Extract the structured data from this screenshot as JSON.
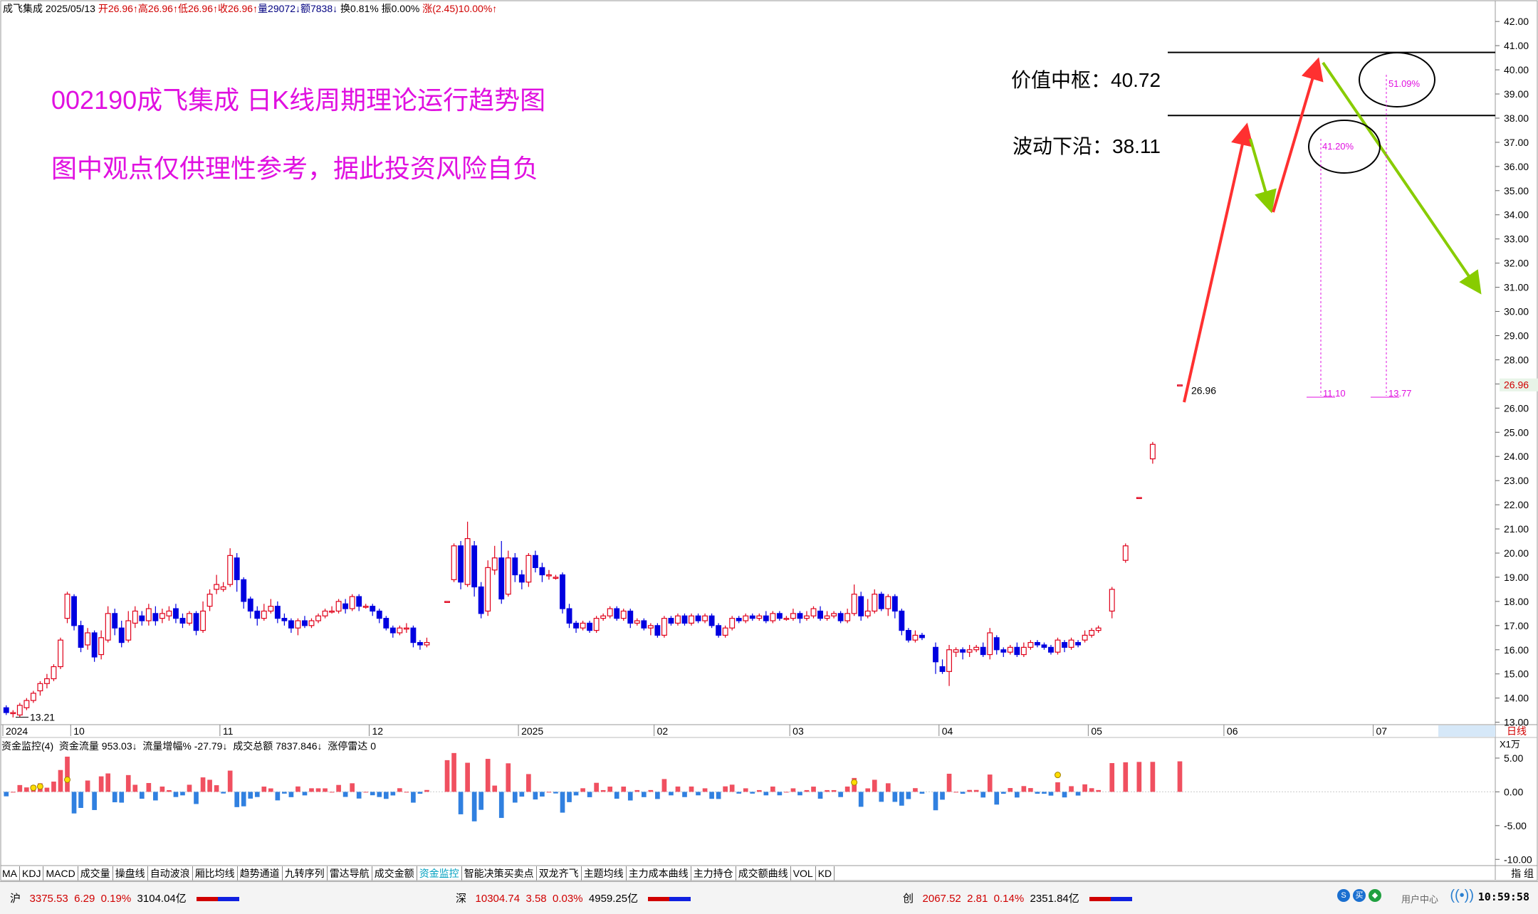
{
  "header": {
    "stock_name": "成飞集成",
    "date": "2025/05/13",
    "open": "开26.96↑",
    "high": "高26.96↑",
    "low": "低26.96↑",
    "close": "收26.96↑",
    "volume": "量29072↓",
    "amount": "额7838↓",
    "turnover": "换0.81%",
    "amplitude": "振0.00%",
    "change": "涨(2.45)10.00%↑"
  },
  "annotations": {
    "title": "002190成飞集成 日K线周期理论运行趋势图",
    "note": "图中观点仅供理性参考，据此投资风险自负",
    "value_center_label": "价值中枢：40.72",
    "wave_lower_label": "波动下沿：38.11",
    "value_center": 40.72,
    "wave_lower": 38.11,
    "current_price_label": "26.96",
    "low_label": "13.21",
    "pct_1": "41.20%",
    "pct_2": "51.09%",
    "bottom_1": "11.10",
    "bottom_2": "13.77",
    "right_price_tag": "26.96",
    "period": "日线"
  },
  "chart_data": {
    "type": "candlestick",
    "y_axis_ticks": [
      "13.00",
      "14.00",
      "15.00",
      "16.00",
      "17.00",
      "18.00",
      "19.00",
      "20.00",
      "21.00",
      "22.00",
      "23.00",
      "24.00",
      "25.00",
      "26.00",
      "27.00",
      "28.00",
      "29.00",
      "30.00",
      "31.00",
      "32.00",
      "33.00",
      "34.00",
      "35.00",
      "36.00",
      "37.00",
      "38.00",
      "39.00",
      "40.00",
      "41.00",
      "42.00"
    ],
    "ylim": [
      12.9,
      42.3
    ],
    "x_axis_labels": [
      "2024",
      "10",
      "11",
      "12",
      "2025",
      "02",
      "03",
      "04",
      "05",
      "06",
      "07"
    ],
    "x_label_days": [
      0,
      10,
      32,
      54,
      76,
      96,
      116,
      138,
      160,
      180,
      202
    ],
    "total_days": 220,
    "candles": [
      [
        13.6,
        13.4,
        13.7,
        13.3
      ],
      [
        13.4,
        13.4,
        13.5,
        13.2
      ],
      [
        13.3,
        13.7,
        13.8,
        13.2
      ],
      [
        13.6,
        13.9,
        14.0,
        13.5
      ],
      [
        13.9,
        14.2,
        14.3,
        13.8
      ],
      [
        14.3,
        14.6,
        14.7,
        14.1
      ],
      [
        14.6,
        14.8,
        15.0,
        14.4
      ],
      [
        14.8,
        15.3,
        15.4,
        14.7
      ],
      [
        15.3,
        16.4,
        16.5,
        15.2
      ],
      [
        17.3,
        18.3,
        18.4,
        17.1
      ],
      [
        18.2,
        17.0,
        18.3,
        16.8
      ],
      [
        17.0,
        16.1,
        17.2,
        15.9
      ],
      [
        16.2,
        16.7,
        16.9,
        16.0
      ],
      [
        16.7,
        15.7,
        16.8,
        15.5
      ],
      [
        15.8,
        16.5,
        16.8,
        15.6
      ],
      [
        16.4,
        17.5,
        17.8,
        16.3
      ],
      [
        17.5,
        16.9,
        17.7,
        16.6
      ],
      [
        16.9,
        16.3,
        17.2,
        16.1
      ],
      [
        16.4,
        17.2,
        17.6,
        16.3
      ],
      [
        17.1,
        17.6,
        17.8,
        16.9
      ],
      [
        17.4,
        17.2,
        17.6,
        17.0
      ],
      [
        17.2,
        17.7,
        17.9,
        17.0
      ],
      [
        17.5,
        17.2,
        17.8,
        17.0
      ],
      [
        17.3,
        17.5,
        17.7,
        17.1
      ],
      [
        17.4,
        17.6,
        17.8,
        17.2
      ],
      [
        17.7,
        17.3,
        17.9,
        17.1
      ],
      [
        17.3,
        17.1,
        17.5,
        16.9
      ],
      [
        17.1,
        17.5,
        17.6,
        17.0
      ],
      [
        17.5,
        16.8,
        17.6,
        16.6
      ],
      [
        16.8,
        17.6,
        18.0,
        16.7
      ],
      [
        17.8,
        18.3,
        18.5,
        17.6
      ],
      [
        18.5,
        18.7,
        19.1,
        18.3
      ],
      [
        18.5,
        18.6,
        18.8,
        18.4
      ],
      [
        18.7,
        19.9,
        20.2,
        18.6
      ],
      [
        19.8,
        18.9,
        20.0,
        18.4
      ],
      [
        18.9,
        18.0,
        19.0,
        17.7
      ],
      [
        18.1,
        17.6,
        18.2,
        17.3
      ],
      [
        17.6,
        17.3,
        17.8,
        17.0
      ],
      [
        17.3,
        17.6,
        17.9,
        17.2
      ],
      [
        17.6,
        17.8,
        18.1,
        17.5
      ],
      [
        17.8,
        17.3,
        18.0,
        17.1
      ],
      [
        17.3,
        17.2,
        17.5,
        17.0
      ],
      [
        17.2,
        16.9,
        17.3,
        16.7
      ],
      [
        16.9,
        17.2,
        17.3,
        16.6
      ],
      [
        17.2,
        17.0,
        17.4,
        16.9
      ],
      [
        17.0,
        17.2,
        17.3,
        16.9
      ],
      [
        17.2,
        17.4,
        17.5,
        17.1
      ],
      [
        17.4,
        17.6,
        17.7,
        17.3
      ],
      [
        17.6,
        17.6,
        17.8,
        17.5
      ],
      [
        17.6,
        18.0,
        18.1,
        17.5
      ],
      [
        17.9,
        17.7,
        18.1,
        17.5
      ],
      [
        17.7,
        18.2,
        18.3,
        17.6
      ],
      [
        18.2,
        17.8,
        18.3,
        17.6
      ],
      [
        17.8,
        17.8,
        17.9,
        17.7
      ],
      [
        17.8,
        17.6,
        17.9,
        17.4
      ],
      [
        17.6,
        17.3,
        17.7,
        17.1
      ],
      [
        17.3,
        16.9,
        17.4,
        16.8
      ],
      [
        16.9,
        16.7,
        17.0,
        16.5
      ],
      [
        16.7,
        16.9,
        17.0,
        16.6
      ],
      [
        16.9,
        16.9,
        17.1,
        16.7
      ],
      [
        16.9,
        16.3,
        17.0,
        16.1
      ],
      [
        16.3,
        16.2,
        16.4,
        16.0
      ],
      [
        16.2,
        16.3,
        16.5,
        16.1
      ],
      null,
      null,
      [
        18.0,
        18.0,
        18.0,
        18.0
      ],
      [
        18.9,
        20.3,
        20.4,
        18.8
      ],
      [
        20.3,
        18.8,
        20.5,
        18.5
      ],
      [
        18.7,
        20.6,
        21.3,
        18.6
      ],
      [
        20.3,
        18.6,
        20.5,
        18.2
      ],
      [
        18.6,
        17.5,
        18.8,
        17.3
      ],
      [
        17.6,
        19.4,
        19.7,
        17.4
      ],
      [
        19.3,
        19.8,
        20.3,
        19.1
      ],
      [
        19.8,
        18.1,
        20.5,
        17.9
      ],
      [
        18.3,
        19.8,
        20.1,
        18.2
      ],
      [
        19.8,
        19.1,
        20.0,
        18.8
      ],
      [
        19.1,
        18.8,
        19.3,
        18.5
      ],
      [
        18.8,
        19.9,
        20.0,
        18.6
      ],
      [
        19.9,
        19.4,
        20.1,
        19.2
      ],
      [
        19.4,
        19.1,
        19.6,
        18.8
      ],
      [
        19.1,
        19.1,
        19.3,
        18.9
      ],
      [
        19.0,
        19.0,
        19.1,
        18.9
      ],
      [
        19.1,
        17.7,
        19.2,
        17.5
      ],
      [
        17.7,
        17.1,
        17.9,
        16.9
      ],
      [
        17.1,
        16.9,
        17.2,
        16.7
      ],
      [
        16.9,
        17.1,
        17.2,
        16.8
      ],
      [
        17.1,
        16.8,
        17.2,
        16.7
      ],
      [
        16.8,
        17.3,
        17.4,
        16.7
      ],
      [
        17.3,
        17.4,
        17.5,
        17.2
      ],
      [
        17.4,
        17.7,
        17.8,
        17.3
      ],
      [
        17.7,
        17.3,
        17.8,
        17.2
      ],
      [
        17.3,
        17.6,
        17.7,
        17.2
      ],
      [
        17.6,
        17.1,
        17.7,
        16.9
      ],
      [
        17.1,
        17.2,
        17.3,
        17.0
      ],
      [
        17.2,
        16.9,
        17.3,
        16.8
      ],
      [
        16.9,
        17.0,
        17.1,
        16.6
      ],
      [
        17.0,
        16.6,
        17.1,
        16.5
      ],
      [
        16.6,
        17.3,
        17.4,
        16.5
      ],
      [
        17.3,
        17.1,
        17.4,
        17.0
      ],
      [
        17.1,
        17.4,
        17.5,
        17.0
      ],
      [
        17.4,
        17.1,
        17.5,
        17.0
      ],
      [
        17.1,
        17.4,
        17.5,
        17.0
      ],
      [
        17.4,
        17.2,
        17.5,
        17.1
      ],
      [
        17.2,
        17.4,
        17.5,
        17.1
      ],
      [
        17.4,
        17.0,
        17.5,
        16.9
      ],
      [
        17.0,
        16.6,
        17.1,
        16.5
      ],
      [
        16.6,
        16.9,
        17.0,
        16.5
      ],
      [
        16.9,
        17.3,
        17.4,
        16.8
      ],
      [
        17.3,
        17.2,
        17.4,
        17.1
      ],
      [
        17.2,
        17.4,
        17.5,
        17.1
      ],
      [
        17.4,
        17.3,
        17.5,
        17.2
      ],
      [
        17.3,
        17.4,
        17.5,
        17.2
      ],
      [
        17.4,
        17.2,
        17.6,
        17.1
      ],
      [
        17.2,
        17.5,
        17.6,
        17.1
      ],
      [
        17.5,
        17.3,
        17.6,
        17.2
      ],
      [
        17.3,
        17.3,
        17.4,
        17.2
      ],
      [
        17.3,
        17.5,
        17.7,
        17.2
      ],
      [
        17.5,
        17.3,
        17.6,
        17.1
      ],
      [
        17.3,
        17.4,
        17.6,
        17.2
      ],
      [
        17.4,
        17.7,
        17.8,
        17.3
      ],
      [
        17.6,
        17.3,
        17.8,
        17.2
      ],
      [
        17.3,
        17.4,
        17.6,
        17.2
      ],
      [
        17.4,
        17.5,
        17.6,
        17.3
      ],
      [
        17.5,
        17.2,
        17.6,
        17.1
      ],
      [
        17.2,
        17.5,
        17.7,
        17.1
      ],
      [
        17.5,
        18.3,
        18.7,
        17.4
      ],
      [
        18.2,
        17.4,
        18.4,
        17.2
      ],
      [
        17.4,
        17.6,
        18.1,
        17.3
      ],
      [
        17.6,
        18.3,
        18.5,
        17.5
      ],
      [
        18.3,
        17.7,
        18.4,
        17.6
      ],
      [
        17.7,
        18.2,
        18.3,
        17.4
      ],
      [
        18.2,
        17.6,
        18.3,
        17.3
      ],
      [
        17.6,
        16.8,
        17.7,
        16.6
      ],
      [
        16.8,
        16.4,
        16.9,
        16.3
      ],
      [
        16.4,
        16.6,
        16.8,
        16.3
      ],
      [
        16.6,
        16.5,
        16.7,
        16.4
      ],
      null,
      [
        16.1,
        15.5,
        16.3,
        15.0
      ],
      [
        15.3,
        15.1,
        15.6,
        15.0
      ],
      [
        15.1,
        16.0,
        16.2,
        14.5
      ],
      [
        15.9,
        16.0,
        16.1,
        15.7
      ],
      [
        16.0,
        15.9,
        16.1,
        15.6
      ],
      [
        15.9,
        16.0,
        16.2,
        15.7
      ],
      [
        16.0,
        16.1,
        16.2,
        15.9
      ],
      [
        16.1,
        15.8,
        16.3,
        15.7
      ],
      [
        15.8,
        16.7,
        16.9,
        15.6
      ],
      [
        16.5,
        16.0,
        16.6,
        15.8
      ],
      [
        16.0,
        15.9,
        16.1,
        15.7
      ],
      [
        15.9,
        16.1,
        16.2,
        15.8
      ],
      [
        16.1,
        15.8,
        16.3,
        15.7
      ],
      [
        15.8,
        16.1,
        16.3,
        15.7
      ],
      [
        16.1,
        16.3,
        16.4,
        16.0
      ],
      [
        16.3,
        16.2,
        16.4,
        16.1
      ],
      [
        16.2,
        16.1,
        16.3,
        16.0
      ],
      [
        16.1,
        15.9,
        16.2,
        15.8
      ],
      [
        15.9,
        16.4,
        16.5,
        15.8
      ],
      [
        16.3,
        16.1,
        16.4,
        15.9
      ],
      [
        16.1,
        16.4,
        16.5,
        16.0
      ],
      [
        16.3,
        16.2,
        16.4,
        16.1
      ],
      [
        16.4,
        16.6,
        16.8,
        16.3
      ],
      [
        16.6,
        16.8,
        16.9,
        16.5
      ],
      [
        16.8,
        16.9,
        17.0,
        16.7
      ],
      null,
      [
        17.6,
        18.5,
        18.6,
        17.3
      ],
      null,
      [
        19.7,
        20.3,
        20.4,
        19.6
      ],
      null,
      [
        22.3,
        22.3,
        22.3,
        22.3
      ],
      null,
      [
        23.9,
        24.5,
        24.6,
        23.7
      ],
      null,
      null,
      null,
      [
        26.96,
        26.96,
        26.96,
        26.96
      ]
    ],
    "indicator": {
      "name": "资金监控(4)",
      "fund_flow": "资金流量 953.03↓",
      "flow_increase": "流量增幅% -27.79↓",
      "total_amount": "成交总额 7837.846↓",
      "limit_up": "涨停雷达 0",
      "unit": "X1万",
      "ticks": [
        "5.00",
        "0.00",
        "-5.00",
        "-10.00"
      ],
      "ylim": [
        -10.5,
        7.0
      ]
    }
  },
  "tabs": [
    "MA",
    "KDJ",
    "MACD",
    "成交量",
    "操盘线",
    "自动波浪",
    "厢比均线",
    "趋势通道",
    "九转序列",
    "雷达导航",
    "成交金额",
    "资金监控",
    "智能决策买卖点",
    "双龙齐飞",
    "主题均线",
    "主力成本曲线",
    "主力持仓",
    "成交额曲线",
    "VOL",
    "KD"
  ],
  "active_tab": "资金监控",
  "tab_right": "指 组",
  "status_bar": {
    "sh": {
      "name": "沪",
      "value": "3375.53",
      "change": "6.29",
      "pct": "0.19%",
      "amount": "3104.04亿"
    },
    "sz": {
      "name": "深",
      "value": "10304.74",
      "change": "3.58",
      "pct": "0.03%",
      "amount": "4959.25亿"
    },
    "cy": {
      "name": "创",
      "value": "2067.52",
      "change": "2.81",
      "pct": "0.14%",
      "amount": "2351.84亿"
    },
    "user_center": "用户中心",
    "time": "10:59:58"
  },
  "colors": {
    "up": "#e0001a",
    "down": "#0000e0",
    "magenta": "#e010e0",
    "arrow_red": "#ff3030",
    "arrow_green": "#88cc00"
  }
}
